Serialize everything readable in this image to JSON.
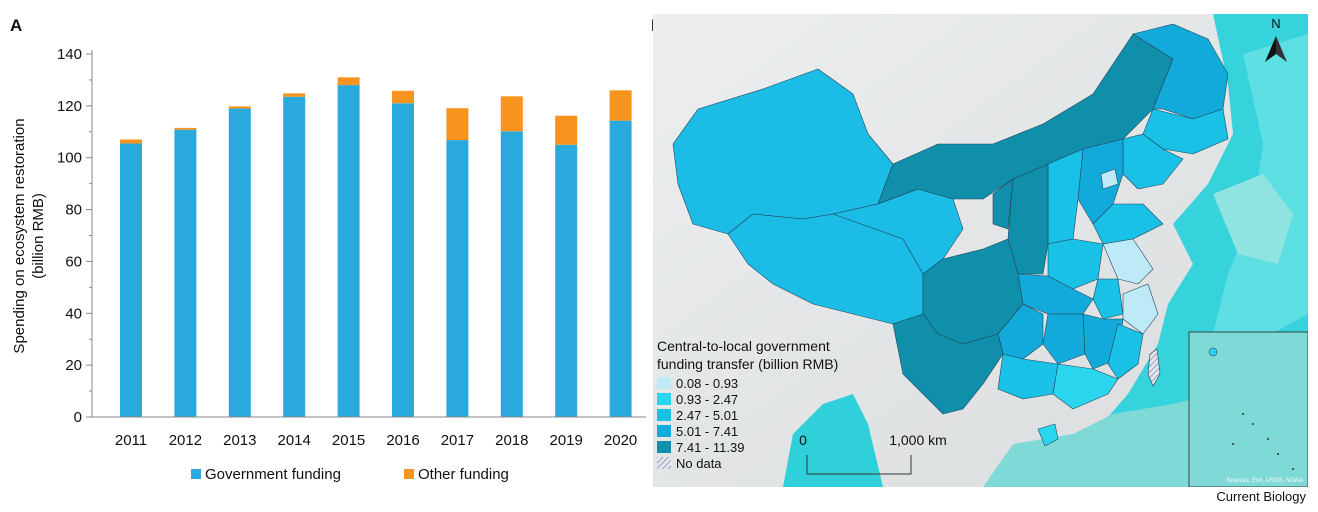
{
  "panels": {
    "a_letter": "A",
    "b_letter": "B"
  },
  "chart_data": [
    {
      "type": "bar",
      "stacked": true,
      "categories": [
        "2011",
        "2012",
        "2013",
        "2014",
        "2015",
        "2016",
        "2017",
        "2018",
        "2019",
        "2020"
      ],
      "series": [
        {
          "name": "Government funding",
          "color": "#2aa9de",
          "values": [
            105.5,
            110.8,
            119,
            123.5,
            128,
            121,
            106.8,
            110.2,
            105,
            114.3
          ]
        },
        {
          "name": "Other funding",
          "color": "#f7941d",
          "values": [
            1.5,
            0.7,
            0.8,
            1.3,
            3,
            4.8,
            12.3,
            13.5,
            11.2,
            11.7
          ]
        }
      ],
      "ylabel_line1": "Spending on ecosystem restoration",
      "ylabel_line2": "(billion RMB)",
      "xlabel": "",
      "ylim": [
        0,
        140
      ],
      "yticks": [
        0,
        20,
        40,
        60,
        80,
        100,
        120,
        140
      ],
      "grid": false,
      "legend_position": "bottom"
    }
  ],
  "map": {
    "north_label": "N",
    "legend_title_line1": "Central-to-local government",
    "legend_title_line2": "funding transfer (billion RMB)",
    "classes": [
      {
        "label": "0.08 - 0.93",
        "color": "#bdeaf6"
      },
      {
        "label": "0.93 - 2.47",
        "color": "#29d6ee"
      },
      {
        "label": "2.47 - 5.01",
        "color": "#19c1e7"
      },
      {
        "label": "5.01 - 7.41",
        "color": "#12aadb"
      },
      {
        "label": "7.41 - 11.39",
        "color": "#0f8faa"
      }
    ],
    "no_data_label": "No data",
    "scale_start": "0",
    "scale_end": "1,000 km",
    "sources": "Sources: Esri, USGS, NOAA"
  },
  "credit": "Current Biology"
}
